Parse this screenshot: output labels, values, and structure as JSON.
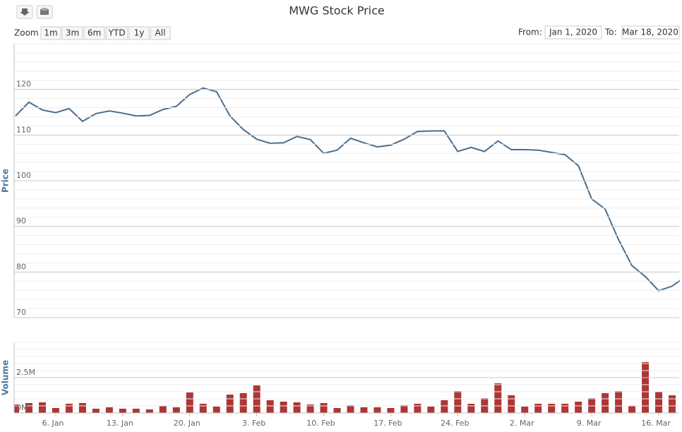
{
  "title": "MWG Stock Price",
  "zoom_label": "Zoom",
  "zoom_buttons": [
    "1m",
    "3m",
    "6m",
    "YTD",
    "1y",
    "All"
  ],
  "from_label": "From:",
  "from_value": "Jan 1, 2020",
  "to_label": "To:",
  "to_value": "Mar 18, 2020",
  "chart_data": [
    {
      "type": "line",
      "y_label": "Price",
      "color": "#4a6d8c",
      "x": [
        "2019-12-31",
        "2020-01-02",
        "2020-01-03",
        "2020-01-06",
        "2020-01-07",
        "2020-01-08",
        "2020-01-09",
        "2020-01-10",
        "2020-01-13",
        "2020-01-14",
        "2020-01-15",
        "2020-01-16",
        "2020-01-17",
        "2020-01-20",
        "2020-01-21",
        "2020-01-22",
        "2020-01-30",
        "2020-01-31",
        "2020-02-03",
        "2020-02-04",
        "2020-02-05",
        "2020-02-06",
        "2020-02-07",
        "2020-02-10",
        "2020-02-11",
        "2020-02-12",
        "2020-02-13",
        "2020-02-14",
        "2020-02-17",
        "2020-02-18",
        "2020-02-19",
        "2020-02-20",
        "2020-02-21",
        "2020-02-24",
        "2020-02-25",
        "2020-02-26",
        "2020-02-27",
        "2020-02-28",
        "2020-03-02",
        "2020-03-03",
        "2020-03-04",
        "2020-03-05",
        "2020-03-06",
        "2020-03-09",
        "2020-03-10",
        "2020-03-11",
        "2020-03-12",
        "2020-03-13",
        "2020-03-16",
        "2020-03-17",
        "2020-03-18"
      ],
      "values": [
        114.2,
        117.2,
        115.5,
        114.9,
        115.8,
        113.0,
        114.7,
        115.3,
        114.8,
        114.2,
        114.3,
        115.6,
        116.3,
        118.9,
        120.3,
        119.5,
        114.2,
        111.2,
        109.1,
        108.2,
        108.3,
        109.7,
        109.0,
        106.0,
        106.7,
        109.3,
        108.3,
        107.4,
        107.8,
        109.1,
        110.8,
        110.9,
        110.9,
        106.4,
        107.3,
        106.4,
        108.7,
        106.8,
        106.8,
        106.7,
        106.2,
        105.7,
        103.3,
        96.0,
        93.8,
        87.1,
        81.4,
        79.0,
        75.9,
        76.9,
        79.0
      ],
      "ylim": [
        70,
        130
      ],
      "yticks": [
        70,
        80,
        90,
        100,
        110,
        120
      ],
      "grid": true
    },
    {
      "type": "bar",
      "y_label": "Volume",
      "color": "#ad3636",
      "x": [
        "2019-12-31",
        "2020-01-02",
        "2020-01-03",
        "2020-01-06",
        "2020-01-07",
        "2020-01-08",
        "2020-01-09",
        "2020-01-10",
        "2020-01-13",
        "2020-01-14",
        "2020-01-15",
        "2020-01-16",
        "2020-01-17",
        "2020-01-20",
        "2020-01-21",
        "2020-01-22",
        "2020-01-30",
        "2020-01-31",
        "2020-02-03",
        "2020-02-04",
        "2020-02-05",
        "2020-02-06",
        "2020-02-07",
        "2020-02-10",
        "2020-02-11",
        "2020-02-12",
        "2020-02-13",
        "2020-02-14",
        "2020-02-17",
        "2020-02-18",
        "2020-02-19",
        "2020-02-20",
        "2020-02-21",
        "2020-02-24",
        "2020-02-25",
        "2020-02-26",
        "2020-02-27",
        "2020-02-28",
        "2020-03-02",
        "2020-03-03",
        "2020-03-04",
        "2020-03-05",
        "2020-03-06",
        "2020-03-09",
        "2020-03-10",
        "2020-03-11",
        "2020-03-12",
        "2020-03-13",
        "2020-03-16",
        "2020-03-17",
        "2020-03-18"
      ],
      "values": [
        600000,
        700000,
        750000,
        350000,
        650000,
        700000,
        300000,
        400000,
        300000,
        300000,
        250000,
        500000,
        400000,
        1450000,
        650000,
        450000,
        1300000,
        1400000,
        1950000,
        900000,
        800000,
        750000,
        600000,
        700000,
        350000,
        550000,
        400000,
        400000,
        350000,
        550000,
        650000,
        450000,
        900000,
        1550000,
        650000,
        1050000,
        2100000,
        1250000,
        450000,
        650000,
        650000,
        650000,
        800000,
        1050000,
        1400000,
        1550000,
        500000,
        3600000,
        1500000,
        1250000,
        null
      ],
      "ylim": [
        0,
        5000000
      ],
      "yticks": [
        {
          "value": 0,
          "label": "0M"
        },
        {
          "value": 2500000,
          "label": "2.5M"
        }
      ],
      "grid": true,
      "xticks": [
        {
          "value": "2020-01-06",
          "label": "6. Jan"
        },
        {
          "value": "2020-01-13",
          "label": "13. Jan"
        },
        {
          "value": "2020-01-20",
          "label": "20. Jan"
        },
        {
          "value": "2020-02-03",
          "label": "3. Feb"
        },
        {
          "value": "2020-02-10",
          "label": "10. Feb"
        },
        {
          "value": "2020-02-17",
          "label": "17. Feb"
        },
        {
          "value": "2020-02-24",
          "label": "24. Feb"
        },
        {
          "value": "2020-03-02",
          "label": "2. Mar"
        },
        {
          "value": "2020-03-09",
          "label": "9. Mar"
        },
        {
          "value": "2020-03-16",
          "label": "16. Mar"
        }
      ]
    }
  ]
}
